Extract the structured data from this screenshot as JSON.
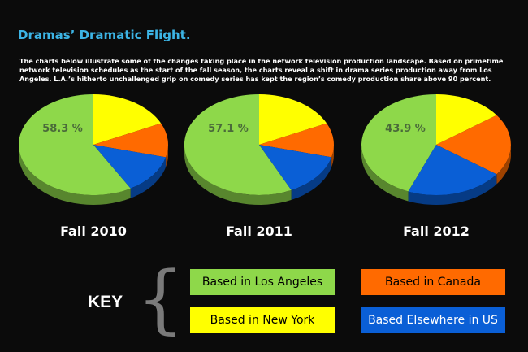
{
  "title": "Dramas’ Dramatic Flight.",
  "description": "The charts below illustrate some of the changes taking place in the network television production landscape.  Based on primetime network television schedules as the start of the fall season, the charts reveal a shift in drama series production away from Los Angeles.  L.A.’s hitherto unchallenged grip on comedy series has kept the region’s comedy production share above 90 percent.",
  "key": {
    "title": "KEY",
    "items": [
      {
        "label": "Based in Los Angeles",
        "color": "#8ed84a",
        "text_color": "#000000"
      },
      {
        "label": "Based in Canada",
        "color": "#ff6a00",
        "text_color": "#000000"
      },
      {
        "label": "Based in New York",
        "color": "#ffff00",
        "text_color": "#000000"
      },
      {
        "label": "Based Elsewhere in US",
        "color": "#0a5fd6",
        "text_color": "#ffffff"
      }
    ]
  },
  "chart_data": [
    {
      "type": "pie",
      "title": "Fall 2010",
      "slices": [
        {
          "name": "Based in Los Angeles",
          "value": 58.3,
          "label": "58.3 %",
          "color": "#8ed84a"
        },
        {
          "name": "Based in New York",
          "value": 18,
          "color": "#ffff00"
        },
        {
          "name": "Based in Canada",
          "value": 11,
          "color": "#ff6a00"
        },
        {
          "name": "Based Elsewhere in US",
          "value": 12.7,
          "color": "#0a5fd6"
        }
      ]
    },
    {
      "type": "pie",
      "title": "Fall 2011",
      "slices": [
        {
          "name": "Based in Los Angeles",
          "value": 57.1,
          "label": "57.1 %",
          "color": "#8ed84a"
        },
        {
          "name": "Based in New York",
          "value": 18,
          "color": "#ffff00"
        },
        {
          "name": "Based in Canada",
          "value": 11,
          "color": "#ff6a00"
        },
        {
          "name": "Based Elsewhere in US",
          "value": 13.9,
          "color": "#0a5fd6"
        }
      ]
    },
    {
      "type": "pie",
      "title": "Fall 2012",
      "slices": [
        {
          "name": "Based in Los Angeles",
          "value": 43.9,
          "label": "43.9 %",
          "color": "#8ed84a"
        },
        {
          "name": "Based in New York",
          "value": 15,
          "color": "#ffff00"
        },
        {
          "name": "Based in Canada",
          "value": 20,
          "color": "#ff6a00"
        },
        {
          "name": "Based Elsewhere in US",
          "value": 21.1,
          "color": "#0a5fd6"
        }
      ]
    }
  ]
}
